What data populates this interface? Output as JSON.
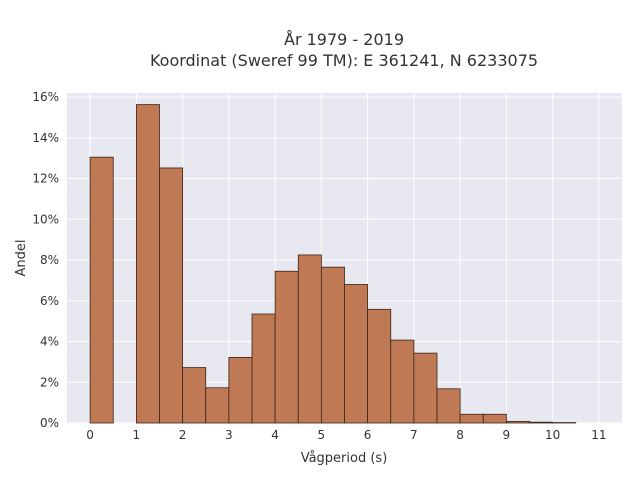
{
  "chart_data": {
    "type": "bar",
    "title_line1": "År 1979 - 2019",
    "title_line2": "Koordinat (Sweref 99 TM): E 361241, N 6233075",
    "xlabel": "Vågperiod (s)",
    "ylabel": "Andel",
    "xlim": [
      -0.5,
      11.5
    ],
    "ylim": [
      0,
      0.162
    ],
    "xticks": [
      0,
      1,
      2,
      3,
      4,
      5,
      6,
      7,
      8,
      9,
      10,
      11
    ],
    "yticks": [
      0,
      0.02,
      0.04,
      0.06,
      0.08,
      0.1,
      0.12,
      0.14,
      0.16
    ],
    "ytick_labels": [
      "0%",
      "2%",
      "4%",
      "6%",
      "8%",
      "10%",
      "12%",
      "14%",
      "16%"
    ],
    "grid": true,
    "bar_color": "#bf7a55",
    "bar_edge_color": "#3a2418",
    "plot_background": "#e8e8f0",
    "bins": [
      {
        "x0": 0.0,
        "x1": 0.5,
        "value": 0.1305
      },
      {
        "x0": 1.0,
        "x1": 1.5,
        "value": 0.1563
      },
      {
        "x0": 1.5,
        "x1": 2.0,
        "value": 0.1252
      },
      {
        "x0": 2.0,
        "x1": 2.5,
        "value": 0.0272
      },
      {
        "x0": 2.5,
        "x1": 3.0,
        "value": 0.0173
      },
      {
        "x0": 3.0,
        "x1": 3.5,
        "value": 0.0322
      },
      {
        "x0": 3.5,
        "x1": 4.0,
        "value": 0.0535
      },
      {
        "x0": 4.0,
        "x1": 4.5,
        "value": 0.0745
      },
      {
        "x0": 4.5,
        "x1": 5.0,
        "value": 0.0825
      },
      {
        "x0": 5.0,
        "x1": 5.5,
        "value": 0.0765
      },
      {
        "x0": 5.5,
        "x1": 6.0,
        "value": 0.068
      },
      {
        "x0": 6.0,
        "x1": 6.5,
        "value": 0.0558
      },
      {
        "x0": 6.5,
        "x1": 7.0,
        "value": 0.0407
      },
      {
        "x0": 7.0,
        "x1": 7.5,
        "value": 0.0343
      },
      {
        "x0": 7.5,
        "x1": 8.0,
        "value": 0.0168
      },
      {
        "x0": 8.0,
        "x1": 8.5,
        "value": 0.0043
      },
      {
        "x0": 8.5,
        "x1": 9.0,
        "value": 0.0043
      },
      {
        "x0": 9.0,
        "x1": 9.5,
        "value": 0.0008
      },
      {
        "x0": 9.5,
        "x1": 10.0,
        "value": 0.0004
      },
      {
        "x0": 10.0,
        "x1": 10.5,
        "value": 0.0002
      }
    ]
  }
}
